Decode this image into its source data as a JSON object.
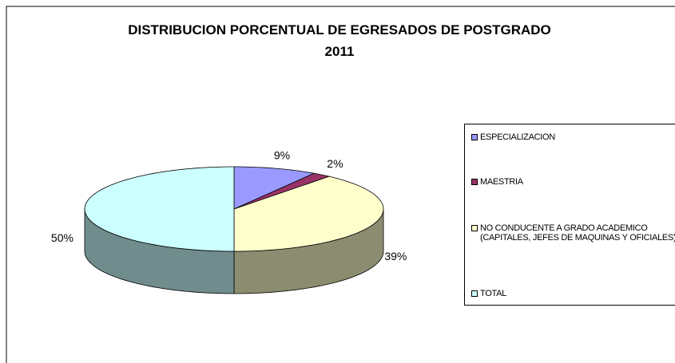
{
  "chart_data": {
    "type": "pie",
    "title": "DISTRIBUCION PORCENTUAL DE EGRESADOS DE POSTGRADO 2011",
    "categories": [
      "ESPECIALIZACION",
      "MAESTRIA",
      "NO CONDUCENTE A GRADO ACADEMICO (CAPITALES, JEFES DE MAQUINAS Y OFICIALES)",
      "TOTAL"
    ],
    "values": [
      9,
      2,
      39,
      50
    ],
    "value_labels": [
      "9%",
      "2%",
      "39%",
      "50%"
    ],
    "colors": [
      "#9999ff",
      "#993366",
      "#ffffcc",
      "#ccffff"
    ],
    "legend": "right"
  }
}
